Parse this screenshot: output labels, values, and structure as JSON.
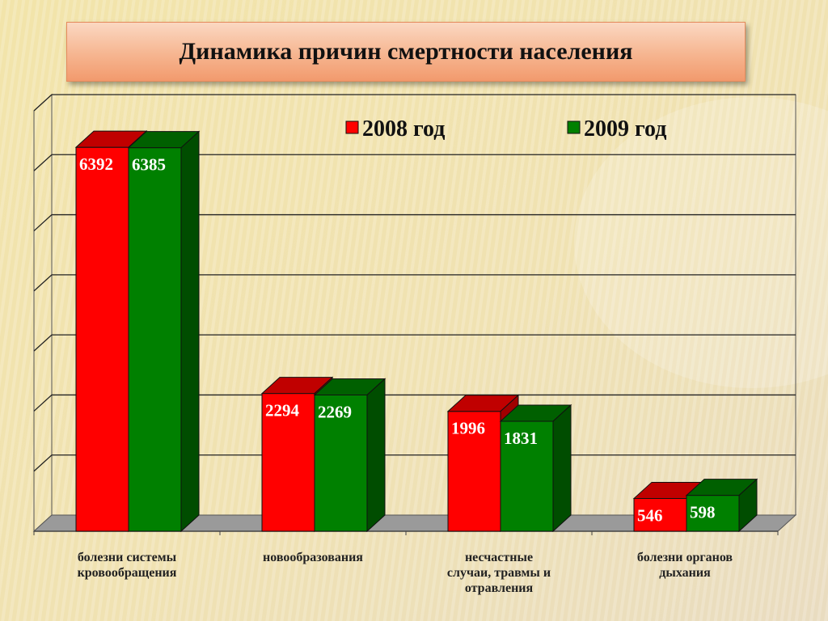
{
  "slide": {
    "title": "Динамика причин смертности населения"
  },
  "chart_data": {
    "type": "bar",
    "title": "Динамика причин смертности населения",
    "categories": [
      [
        "болезни системы",
        "кровообращения"
      ],
      [
        "новообразования"
      ],
      [
        "несчастные",
        "случаи, травмы и",
        "отравления"
      ],
      [
        "болезни органов",
        "дыхания"
      ]
    ],
    "series": [
      {
        "name": "2008 год",
        "values": [
          6392,
          2294,
          1996,
          546
        ],
        "color": "#ff0000",
        "top_color": "#c00000",
        "side_color": "#a00000"
      },
      {
        "name": "2009 год",
        "values": [
          6385,
          2269,
          1831,
          598
        ],
        "color": "#008000",
        "top_color": "#006000",
        "side_color": "#004d00"
      }
    ],
    "ylim": [
      0,
      7000
    ],
    "gridlines": 7,
    "grid": true,
    "legend_position": "top-right"
  }
}
